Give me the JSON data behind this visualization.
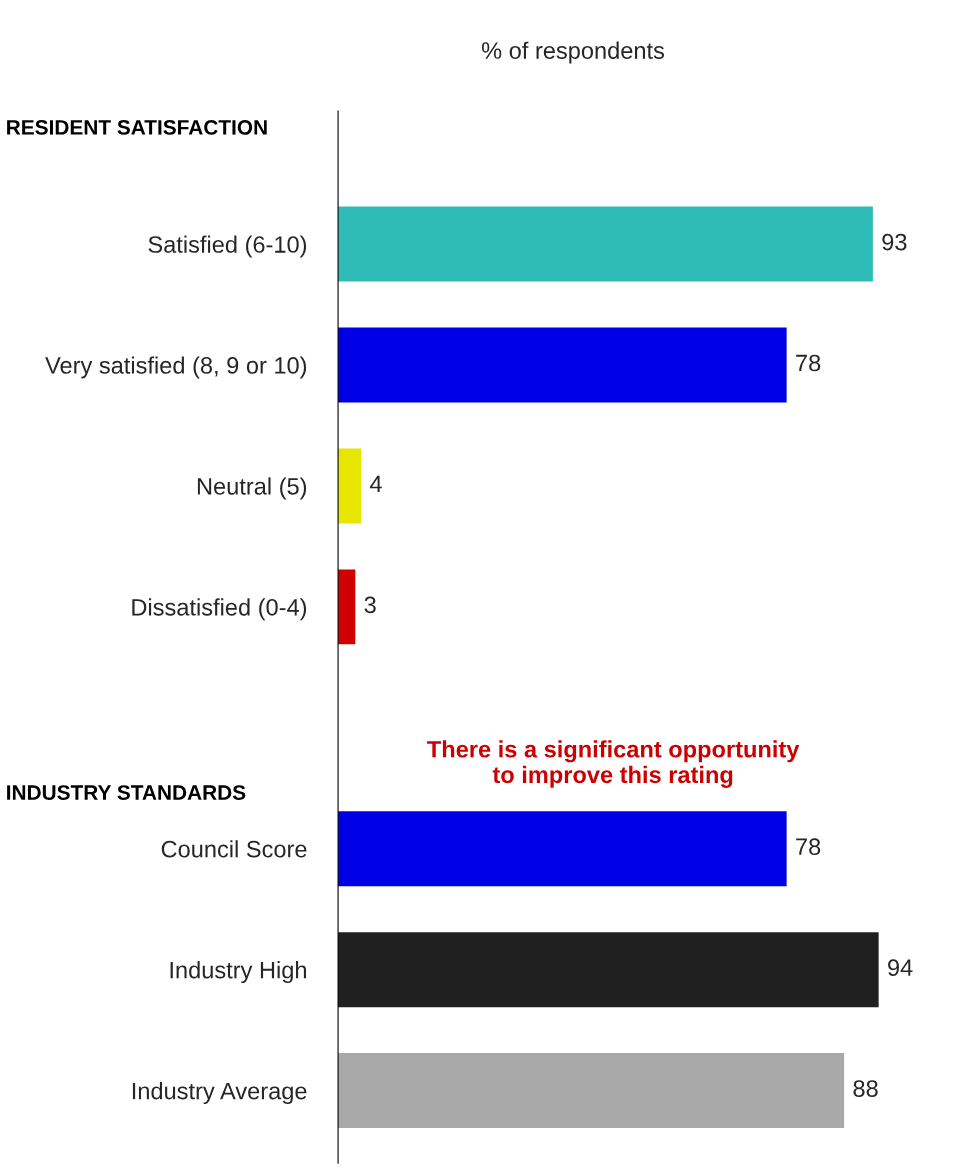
{
  "chart_data": {
    "type": "bar",
    "orientation": "horizontal",
    "xlabel": "% of respondents",
    "categories": [
      "Satisfied (6-10)",
      "Very satisfied (8, 9 or 10)",
      "Neutral (5)",
      "Dissatisfied (0-4)",
      null,
      "Council Score",
      "Industry High",
      "Industry Average"
    ],
    "values": [
      93,
      78,
      4,
      3,
      null,
      78,
      94,
      88
    ],
    "colors": [
      "#2fbcb6",
      "#0000e6",
      "#e6e600",
      "#d00000",
      "#ffffff",
      "#0000e6",
      "#202020",
      "#a8a8a8"
    ],
    "data_labels": true,
    "annotations": [
      "RESIDENT SATISFACTION",
      "INDUSTRY STANDARDS",
      "There is a significant opportunity\nto improve this rating"
    ]
  }
}
